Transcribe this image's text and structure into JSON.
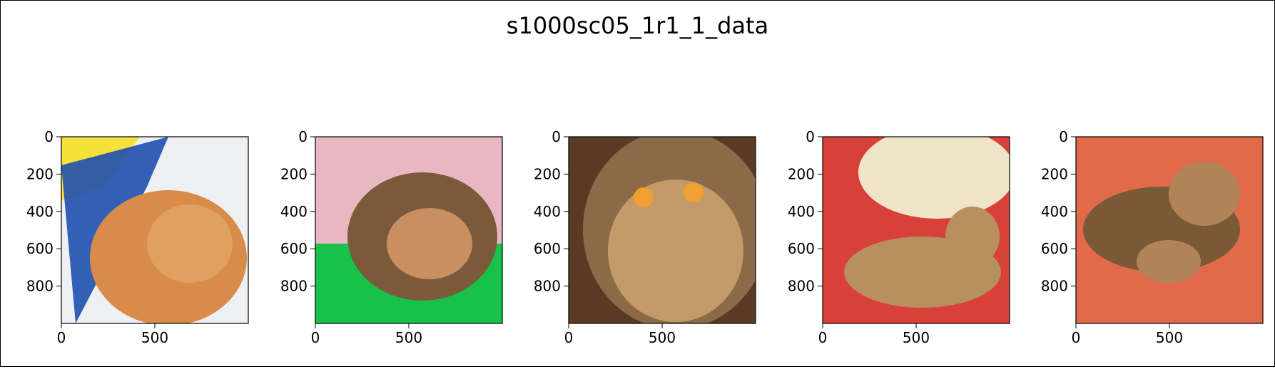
{
  "figure": {
    "suptitle": "s1000sc05_1r1_1_data"
  },
  "chart_data": [
    {
      "type": "image",
      "x_ticks": [
        0,
        500
      ],
      "y_ticks": [
        0,
        200,
        400,
        600,
        800
      ],
      "xlim": [
        0,
        1000
      ],
      "ylim": [
        1000,
        0
      ],
      "dominant_colors": [
        "#f4e13a",
        "#1f4fb0",
        "#d98b4a",
        "#eef0f4"
      ]
    },
    {
      "type": "image",
      "x_ticks": [
        0,
        500
      ],
      "y_ticks": [
        0,
        200,
        400,
        600,
        800
      ],
      "xlim": [
        0,
        1000
      ],
      "ylim": [
        1000,
        0
      ],
      "dominant_colors": [
        "#e9b7c2",
        "#18c24a",
        "#7a5a3a",
        "#c89060"
      ]
    },
    {
      "type": "image",
      "x_ticks": [
        0,
        500
      ],
      "y_ticks": [
        0,
        200,
        400,
        600,
        800
      ],
      "xlim": [
        0,
        1000
      ],
      "ylim": [
        1000,
        0
      ],
      "dominant_colors": [
        "#8a6a48",
        "#c49a6a",
        "#f0a030",
        "#5a3a22"
      ]
    },
    {
      "type": "image",
      "x_ticks": [
        0,
        500
      ],
      "y_ticks": [
        0,
        200,
        400,
        600,
        800
      ],
      "xlim": [
        0,
        1000
      ],
      "ylim": [
        1000,
        0
      ],
      "dominant_colors": [
        "#d8403a",
        "#efe4c8",
        "#b8905e",
        "#e07060"
      ]
    },
    {
      "type": "image",
      "x_ticks": [
        0,
        500
      ],
      "y_ticks": [
        0,
        200,
        400,
        600,
        800
      ],
      "xlim": [
        0,
        1000
      ],
      "ylim": [
        1000,
        0
      ],
      "dominant_colors": [
        "#e06a4a",
        "#d9583c",
        "#7a5a36",
        "#b08458"
      ]
    }
  ]
}
